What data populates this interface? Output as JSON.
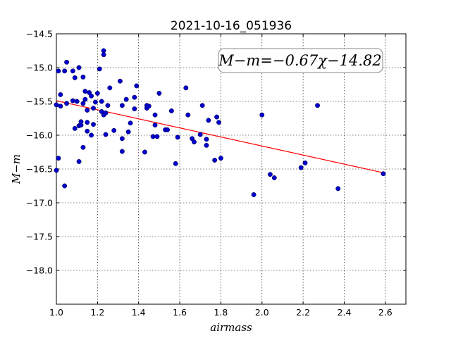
{
  "chart_data": {
    "type": "scatter",
    "title": "2021-10-16_051936",
    "xlabel": "airmass",
    "ylabel": "M−m",
    "xlim": [
      1.0,
      2.7
    ],
    "ylim": [
      -14.5,
      -18.5
    ],
    "y_inverted": true,
    "grid": true,
    "x_ticks": [
      "1.0",
      "1.2",
      "1.4",
      "1.6",
      "1.8",
      "2.0",
      "2.2",
      "2.4",
      "2.6"
    ],
    "y_ticks": [
      "−14.5",
      "−15.0",
      "−15.5",
      "−16.0",
      "−16.5",
      "−17.0",
      "−17.5",
      "−18.0"
    ],
    "annotation": "M−m=−0.67χ−14.82",
    "fit_line": {
      "slope": -0.67,
      "intercept": -14.82,
      "x_range": [
        1.0,
        2.59
      ],
      "color": "#ff0000"
    },
    "point_color": "#0000cc",
    "points": [
      [
        1.0,
        -15.55
      ],
      [
        1.0,
        -16.52
      ],
      [
        1.01,
        -16.34
      ],
      [
        1.01,
        -15.05
      ],
      [
        1.02,
        -15.4
      ],
      [
        1.02,
        -15.57
      ],
      [
        1.04,
        -15.05
      ],
      [
        1.04,
        -16.75
      ],
      [
        1.05,
        -14.92
      ],
      [
        1.05,
        -15.53
      ],
      [
        1.08,
        -15.05
      ],
      [
        1.08,
        -15.49
      ],
      [
        1.09,
        -15.15
      ],
      [
        1.09,
        -15.9
      ],
      [
        1.1,
        -15.5
      ],
      [
        1.11,
        -15.0
      ],
      [
        1.11,
        -15.86
      ],
      [
        1.11,
        -16.39
      ],
      [
        1.12,
        -15.8
      ],
      [
        1.12,
        -15.85
      ],
      [
        1.13,
        -15.14
      ],
      [
        1.13,
        -15.53
      ],
      [
        1.13,
        -16.18
      ],
      [
        1.14,
        -15.35
      ],
      [
        1.14,
        -15.47
      ],
      [
        1.15,
        -15.63
      ],
      [
        1.15,
        -15.81
      ],
      [
        1.15,
        -15.94
      ],
      [
        1.16,
        -15.37
      ],
      [
        1.17,
        -15.42
      ],
      [
        1.17,
        -16.0
      ],
      [
        1.18,
        -15.6
      ],
      [
        1.18,
        -15.84
      ],
      [
        1.19,
        -15.51
      ],
      [
        1.2,
        -15.38
      ],
      [
        1.21,
        -15.02
      ],
      [
        1.22,
        -15.5
      ],
      [
        1.22,
        -15.65
      ],
      [
        1.23,
        -14.75
      ],
      [
        1.23,
        -14.81
      ],
      [
        1.23,
        -15.7
      ],
      [
        1.24,
        -15.67
      ],
      [
        1.24,
        -15.99
      ],
      [
        1.25,
        -15.56
      ],
      [
        1.26,
        -15.3
      ],
      [
        1.28,
        -15.93
      ],
      [
        1.31,
        -15.2
      ],
      [
        1.32,
        -15.56
      ],
      [
        1.32,
        -16.05
      ],
      [
        1.32,
        -16.24
      ],
      [
        1.34,
        -15.47
      ],
      [
        1.35,
        -15.95
      ],
      [
        1.36,
        -15.82
      ],
      [
        1.38,
        -15.44
      ],
      [
        1.38,
        -15.61
      ],
      [
        1.39,
        -15.27
      ],
      [
        1.43,
        -16.25
      ],
      [
        1.44,
        -15.56
      ],
      [
        1.44,
        -15.6
      ],
      [
        1.45,
        -15.57
      ],
      [
        1.47,
        -16.02
      ],
      [
        1.48,
        -15.7
      ],
      [
        1.48,
        -15.85
      ],
      [
        1.49,
        -16.02
      ],
      [
        1.5,
        -15.38
      ],
      [
        1.53,
        -15.92
      ],
      [
        1.54,
        -15.92
      ],
      [
        1.56,
        -15.64
      ],
      [
        1.58,
        -16.42
      ],
      [
        1.59,
        -16.03
      ],
      [
        1.63,
        -15.3
      ],
      [
        1.64,
        -15.7
      ],
      [
        1.66,
        -16.05
      ],
      [
        1.67,
        -16.1
      ],
      [
        1.7,
        -15.99
      ],
      [
        1.71,
        -15.56
      ],
      [
        1.73,
        -16.06
      ],
      [
        1.73,
        -16.15
      ],
      [
        1.74,
        -15.78
      ],
      [
        1.77,
        -16.37
      ],
      [
        1.78,
        -15.73
      ],
      [
        1.79,
        -15.81
      ],
      [
        1.8,
        -16.34
      ],
      [
        1.96,
        -16.88
      ],
      [
        2.0,
        -15.7
      ],
      [
        2.04,
        -16.58
      ],
      [
        2.06,
        -16.63
      ],
      [
        2.19,
        -16.48
      ],
      [
        2.21,
        -16.41
      ],
      [
        2.27,
        -15.56
      ],
      [
        2.37,
        -16.79
      ],
      [
        2.59,
        -16.57
      ]
    ]
  }
}
